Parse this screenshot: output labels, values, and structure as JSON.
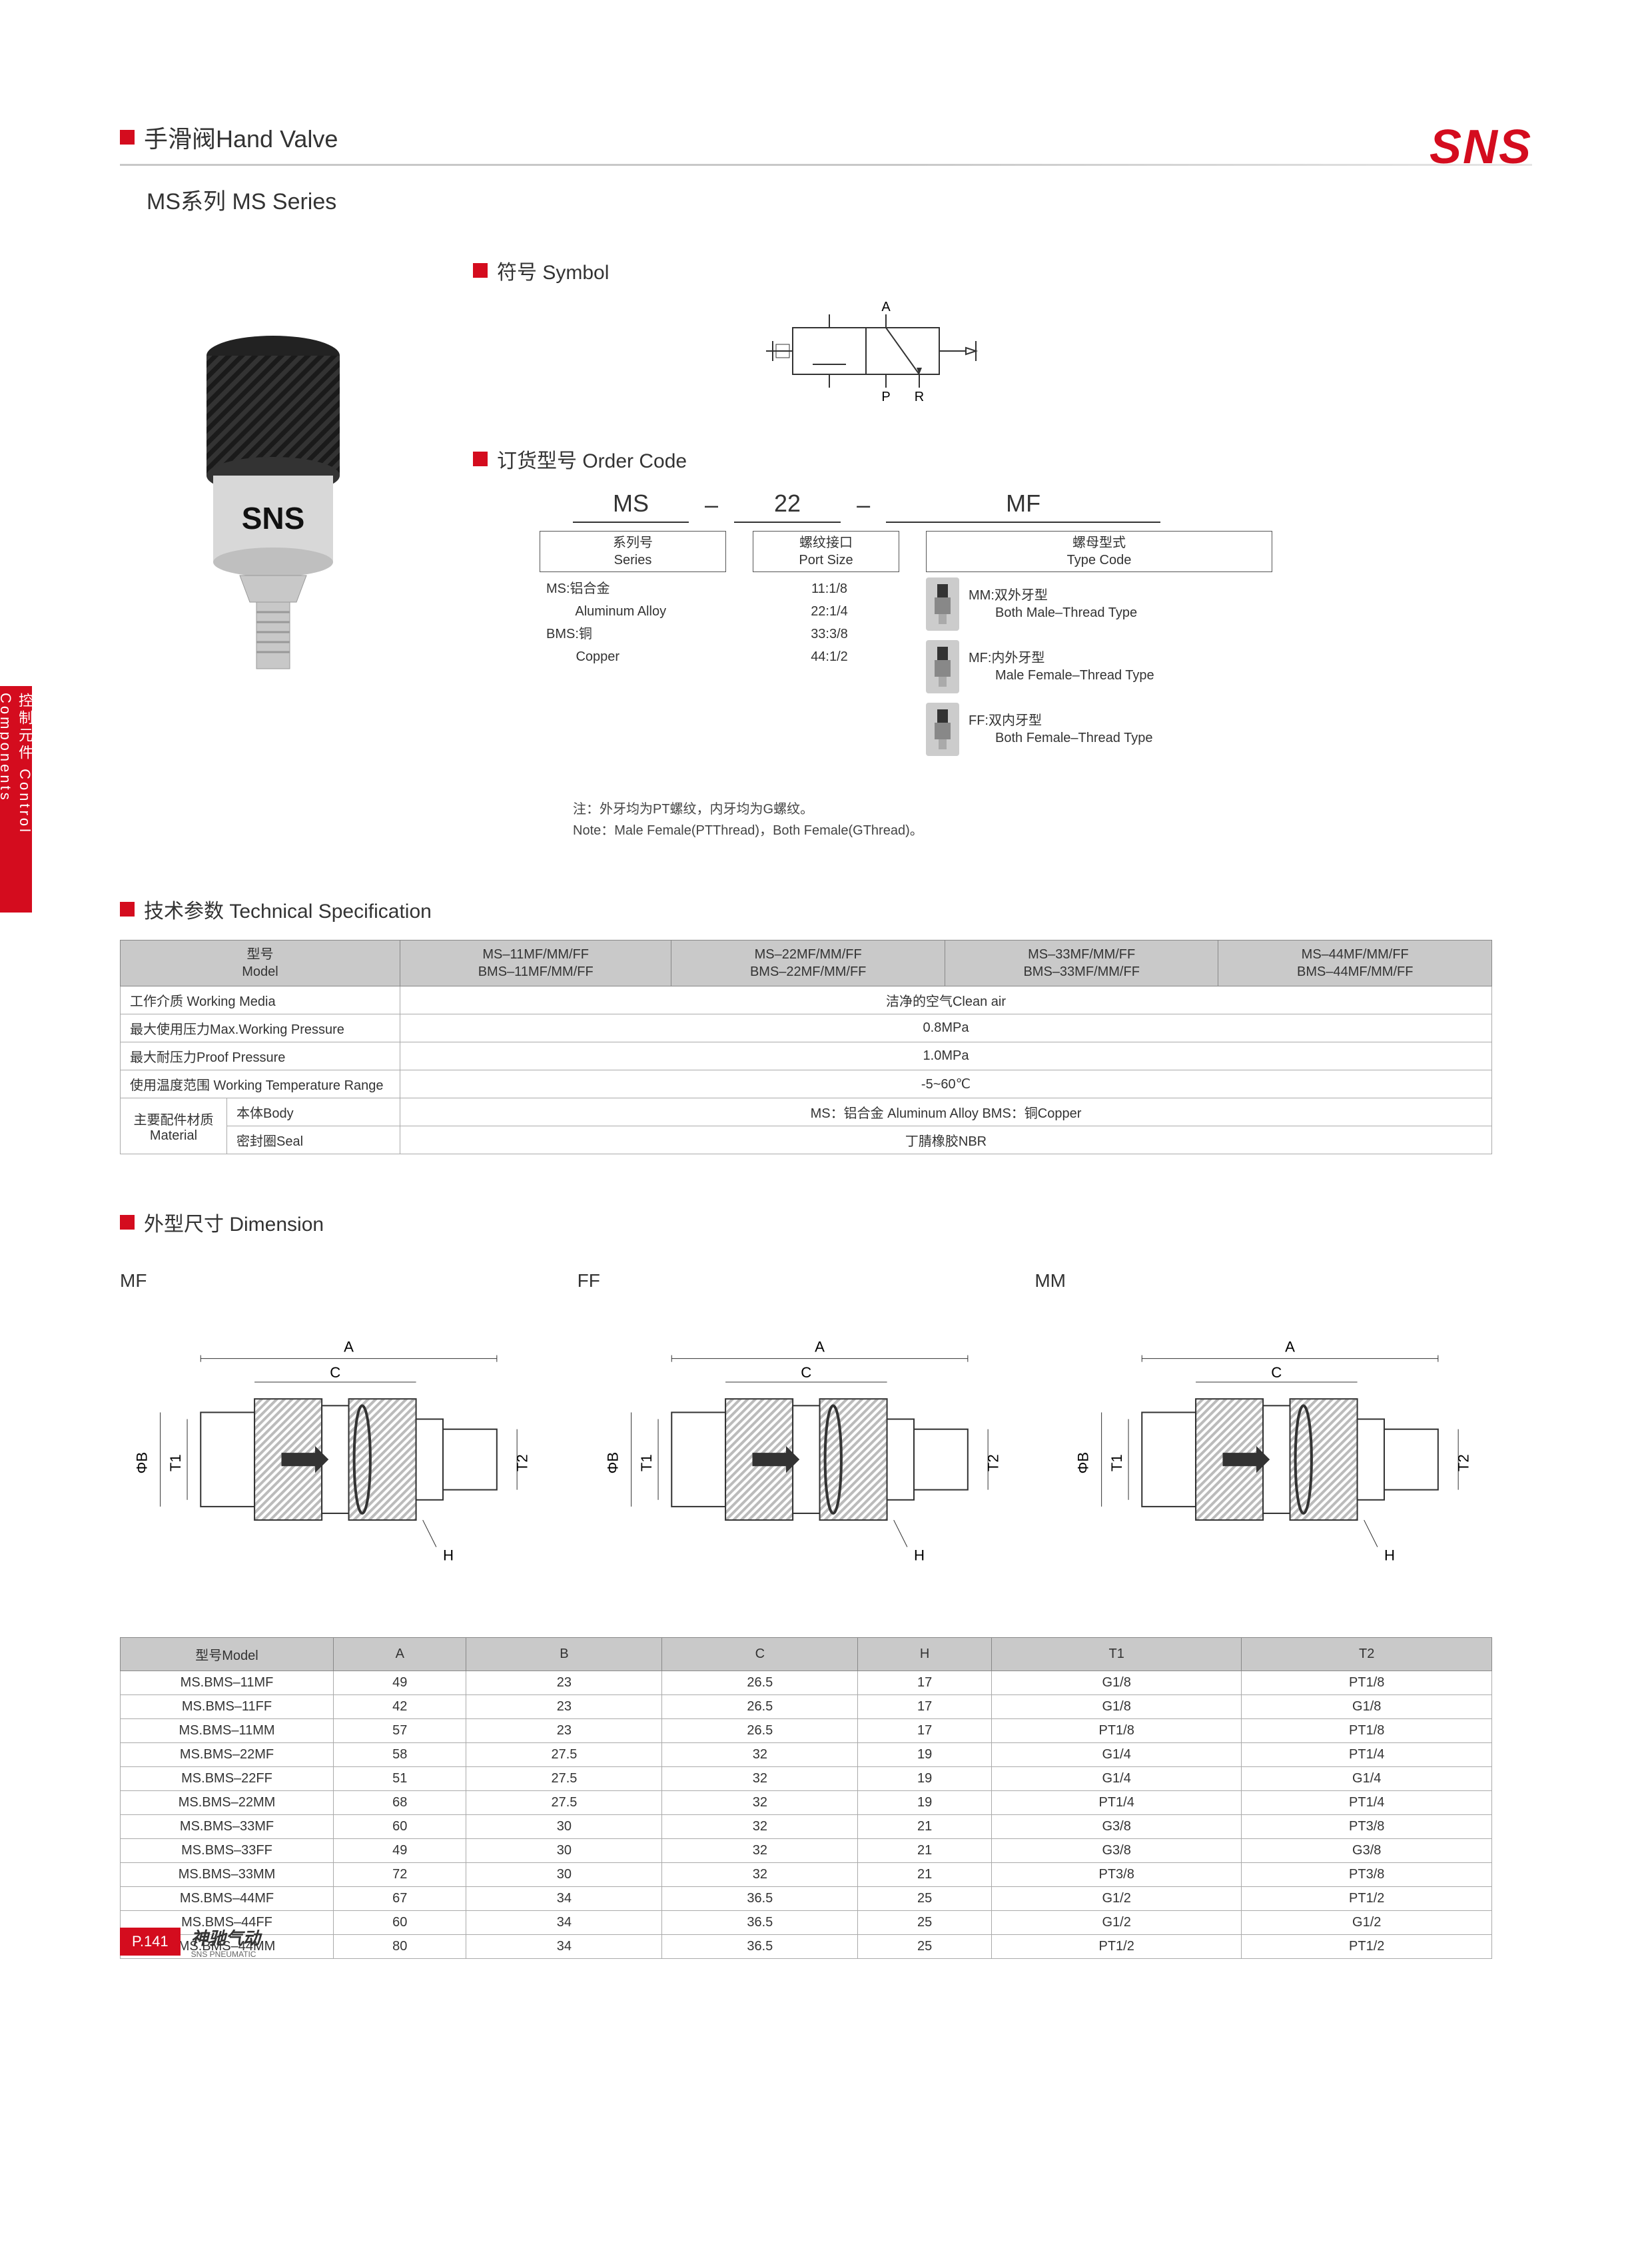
{
  "brand": "SNS",
  "header": {
    "title": "手滑阀Hand Valve",
    "subtitle": "MS系列 MS Series"
  },
  "side_tab": "控制元件 Control Components",
  "symbol": {
    "heading": "符号 Symbol",
    "labels": {
      "a": "A",
      "p": "P",
      "r": "R"
    }
  },
  "order_code": {
    "heading": "订货型号 Order Code",
    "segments": {
      "s1": "MS",
      "dash": "–",
      "s2": "22",
      "s3": "MF"
    },
    "col1": {
      "header": "系列号\nSeries",
      "rows": [
        "MS:铝合金",
        "        Aluminum Alloy",
        "BMS:铜",
        "        Copper"
      ]
    },
    "col2": {
      "header": "螺纹接口\nPort Size",
      "rows": [
        "11:1/8",
        "22:1/4",
        "33:3/8",
        "44:1/2"
      ]
    },
    "col3": {
      "header": "螺母型式\nType Code",
      "types": [
        {
          "code": "MM:双外牙型",
          "en": "Both Male–Thread Type"
        },
        {
          "code": "MF:内外牙型",
          "en": "Male Female–Thread Type"
        },
        {
          "code": "FF:双内牙型",
          "en": "Both Female–Thread Type"
        }
      ]
    },
    "note_cn": "注：外牙均为PT螺纹，内牙均为G螺纹。",
    "note_en": "Note：Male Female(PTThread)，Both Female(GThread)。"
  },
  "spec": {
    "heading": "技术参数 Technical Specification",
    "columns": [
      "型号\nModel",
      "MS–11MF/MM/FF\nBMS–11MF/MM/FF",
      "MS–22MF/MM/FF\nBMS–22MF/MM/FF",
      "MS–33MF/MM/FF\nBMS–33MF/MM/FF",
      "MS–44MF/MM/FF\nBMS–44MF/MM/FF"
    ],
    "rows": [
      {
        "label": "工作介质 Working Media",
        "value": "洁净的空气Clean air"
      },
      {
        "label": "最大使用压力Max.Working Pressure",
        "value": "0.8MPa"
      },
      {
        "label": "最大耐压力Proof Pressure",
        "value": "1.0MPa"
      },
      {
        "label": "使用温度范围 Working Temperature Range",
        "value": "-5~60℃"
      }
    ],
    "material_group_label": "主要配件材质\nMaterial",
    "material_rows": [
      {
        "sublabel": "本体Body",
        "value": "MS：铝合金 Aluminum Alloy   BMS：铜Copper"
      },
      {
        "sublabel": "密封圈Seal",
        "value": "丁腈橡胶NBR"
      }
    ]
  },
  "dimension": {
    "heading": "外型尺寸 Dimension",
    "views": [
      "MF",
      "FF",
      "MM"
    ],
    "dim_labels": {
      "A": "A",
      "B": "ΦB",
      "C": "C",
      "H": "H",
      "T1": "T1",
      "T2": "T2"
    },
    "table_columns": [
      "型号Model",
      "A",
      "B",
      "C",
      "H",
      "T1",
      "T2"
    ],
    "table_rows": [
      [
        "MS.BMS–11MF",
        "49",
        "23",
        "26.5",
        "17",
        "G1/8",
        "PT1/8"
      ],
      [
        "MS.BMS–11FF",
        "42",
        "23",
        "26.5",
        "17",
        "G1/8",
        "G1/8"
      ],
      [
        "MS.BMS–11MM",
        "57",
        "23",
        "26.5",
        "17",
        "PT1/8",
        "PT1/8"
      ],
      [
        "MS.BMS–22MF",
        "58",
        "27.5",
        "32",
        "19",
        "G1/4",
        "PT1/4"
      ],
      [
        "MS.BMS–22FF",
        "51",
        "27.5",
        "32",
        "19",
        "G1/4",
        "G1/4"
      ],
      [
        "MS.BMS–22MM",
        "68",
        "27.5",
        "32",
        "19",
        "PT1/4",
        "PT1/4"
      ],
      [
        "MS.BMS–33MF",
        "60",
        "30",
        "32",
        "21",
        "G3/8",
        "PT3/8"
      ],
      [
        "MS.BMS–33FF",
        "49",
        "30",
        "32",
        "21",
        "G3/8",
        "G3/8"
      ],
      [
        "MS.BMS–33MM",
        "72",
        "30",
        "32",
        "21",
        "PT3/8",
        "PT3/8"
      ],
      [
        "MS.BMS–44MF",
        "67",
        "34",
        "36.5",
        "25",
        "G1/2",
        "PT1/2"
      ],
      [
        "MS.BMS–44FF",
        "60",
        "34",
        "36.5",
        "25",
        "G1/2",
        "G1/2"
      ],
      [
        "MS.BMS–44MM",
        "80",
        "34",
        "36.5",
        "25",
        "PT1/2",
        "PT1/2"
      ]
    ]
  },
  "footer": {
    "page": "P.141",
    "brand_cn": "神驰气动",
    "brand_sub": "SNS PNEUMATIC"
  },
  "colors": {
    "accent": "#d40c1e",
    "header_grey": "#c9c9c9",
    "border": "#aaaaaa",
    "text": "#333333"
  }
}
